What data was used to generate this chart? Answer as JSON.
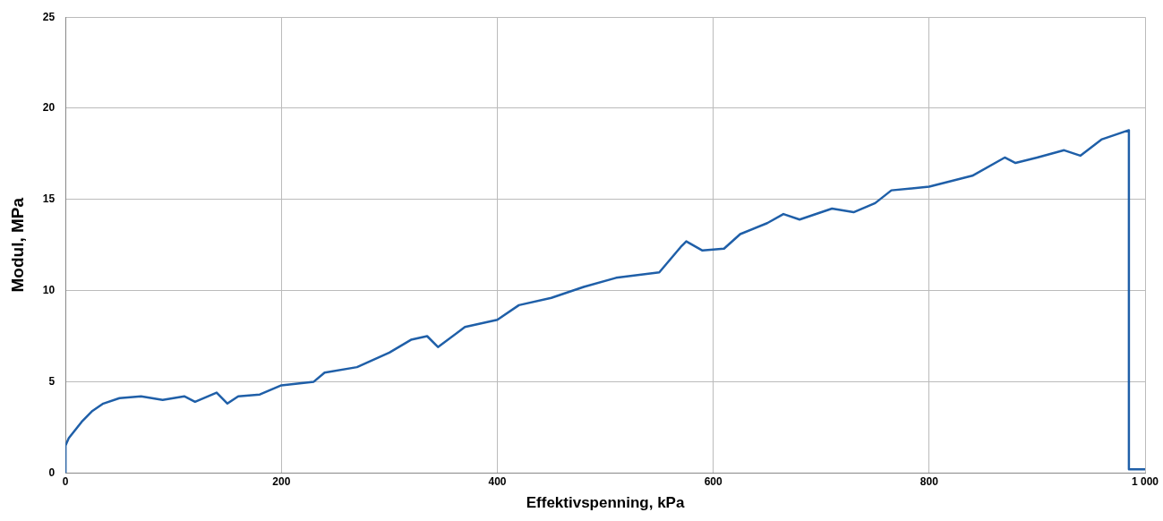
{
  "chart_data": {
    "type": "line",
    "xlabel": "Effektivspenning, kPa",
    "ylabel": "Modul, MPa",
    "xlim": [
      0,
      1000
    ],
    "xticks": [
      0,
      200,
      400,
      600,
      800,
      {
        "value": 1000,
        "label": "1 000"
      }
    ],
    "ylim": [
      0,
      25
    ],
    "yticks": [
      0,
      5,
      10,
      15,
      20,
      25
    ],
    "grid": true,
    "legend": false,
    "marker": "none",
    "line_style": "solid",
    "series": [
      {
        "color": "#1f5fa8",
        "x": [
          0,
          0,
          3,
          15,
          25,
          35,
          50,
          70,
          90,
          110,
          120,
          140,
          150,
          160,
          180,
          200,
          230,
          240,
          270,
          300,
          320,
          335,
          345,
          370,
          400,
          420,
          450,
          480,
          510,
          550,
          570,
          575,
          590,
          610,
          625,
          650,
          665,
          680,
          710,
          730,
          750,
          765,
          800,
          840,
          870,
          880,
          900,
          925,
          940,
          960,
          985,
          985,
          1000
        ],
        "values": [
          0,
          1.5,
          1.9,
          2.8,
          3.4,
          3.8,
          4.1,
          4.2,
          4.0,
          4.2,
          3.9,
          4.4,
          3.8,
          4.2,
          4.3,
          4.8,
          5.0,
          5.5,
          5.8,
          6.6,
          7.3,
          7.5,
          6.9,
          8.0,
          8.4,
          9.2,
          9.6,
          10.2,
          10.7,
          11.0,
          12.4,
          12.7,
          12.2,
          12.3,
          13.1,
          13.7,
          14.2,
          13.9,
          14.5,
          14.3,
          14.8,
          15.5,
          15.7,
          16.3,
          17.3,
          17.0,
          17.3,
          17.7,
          17.4,
          18.3,
          18.8,
          0.2,
          0.2
        ]
      }
    ]
  }
}
